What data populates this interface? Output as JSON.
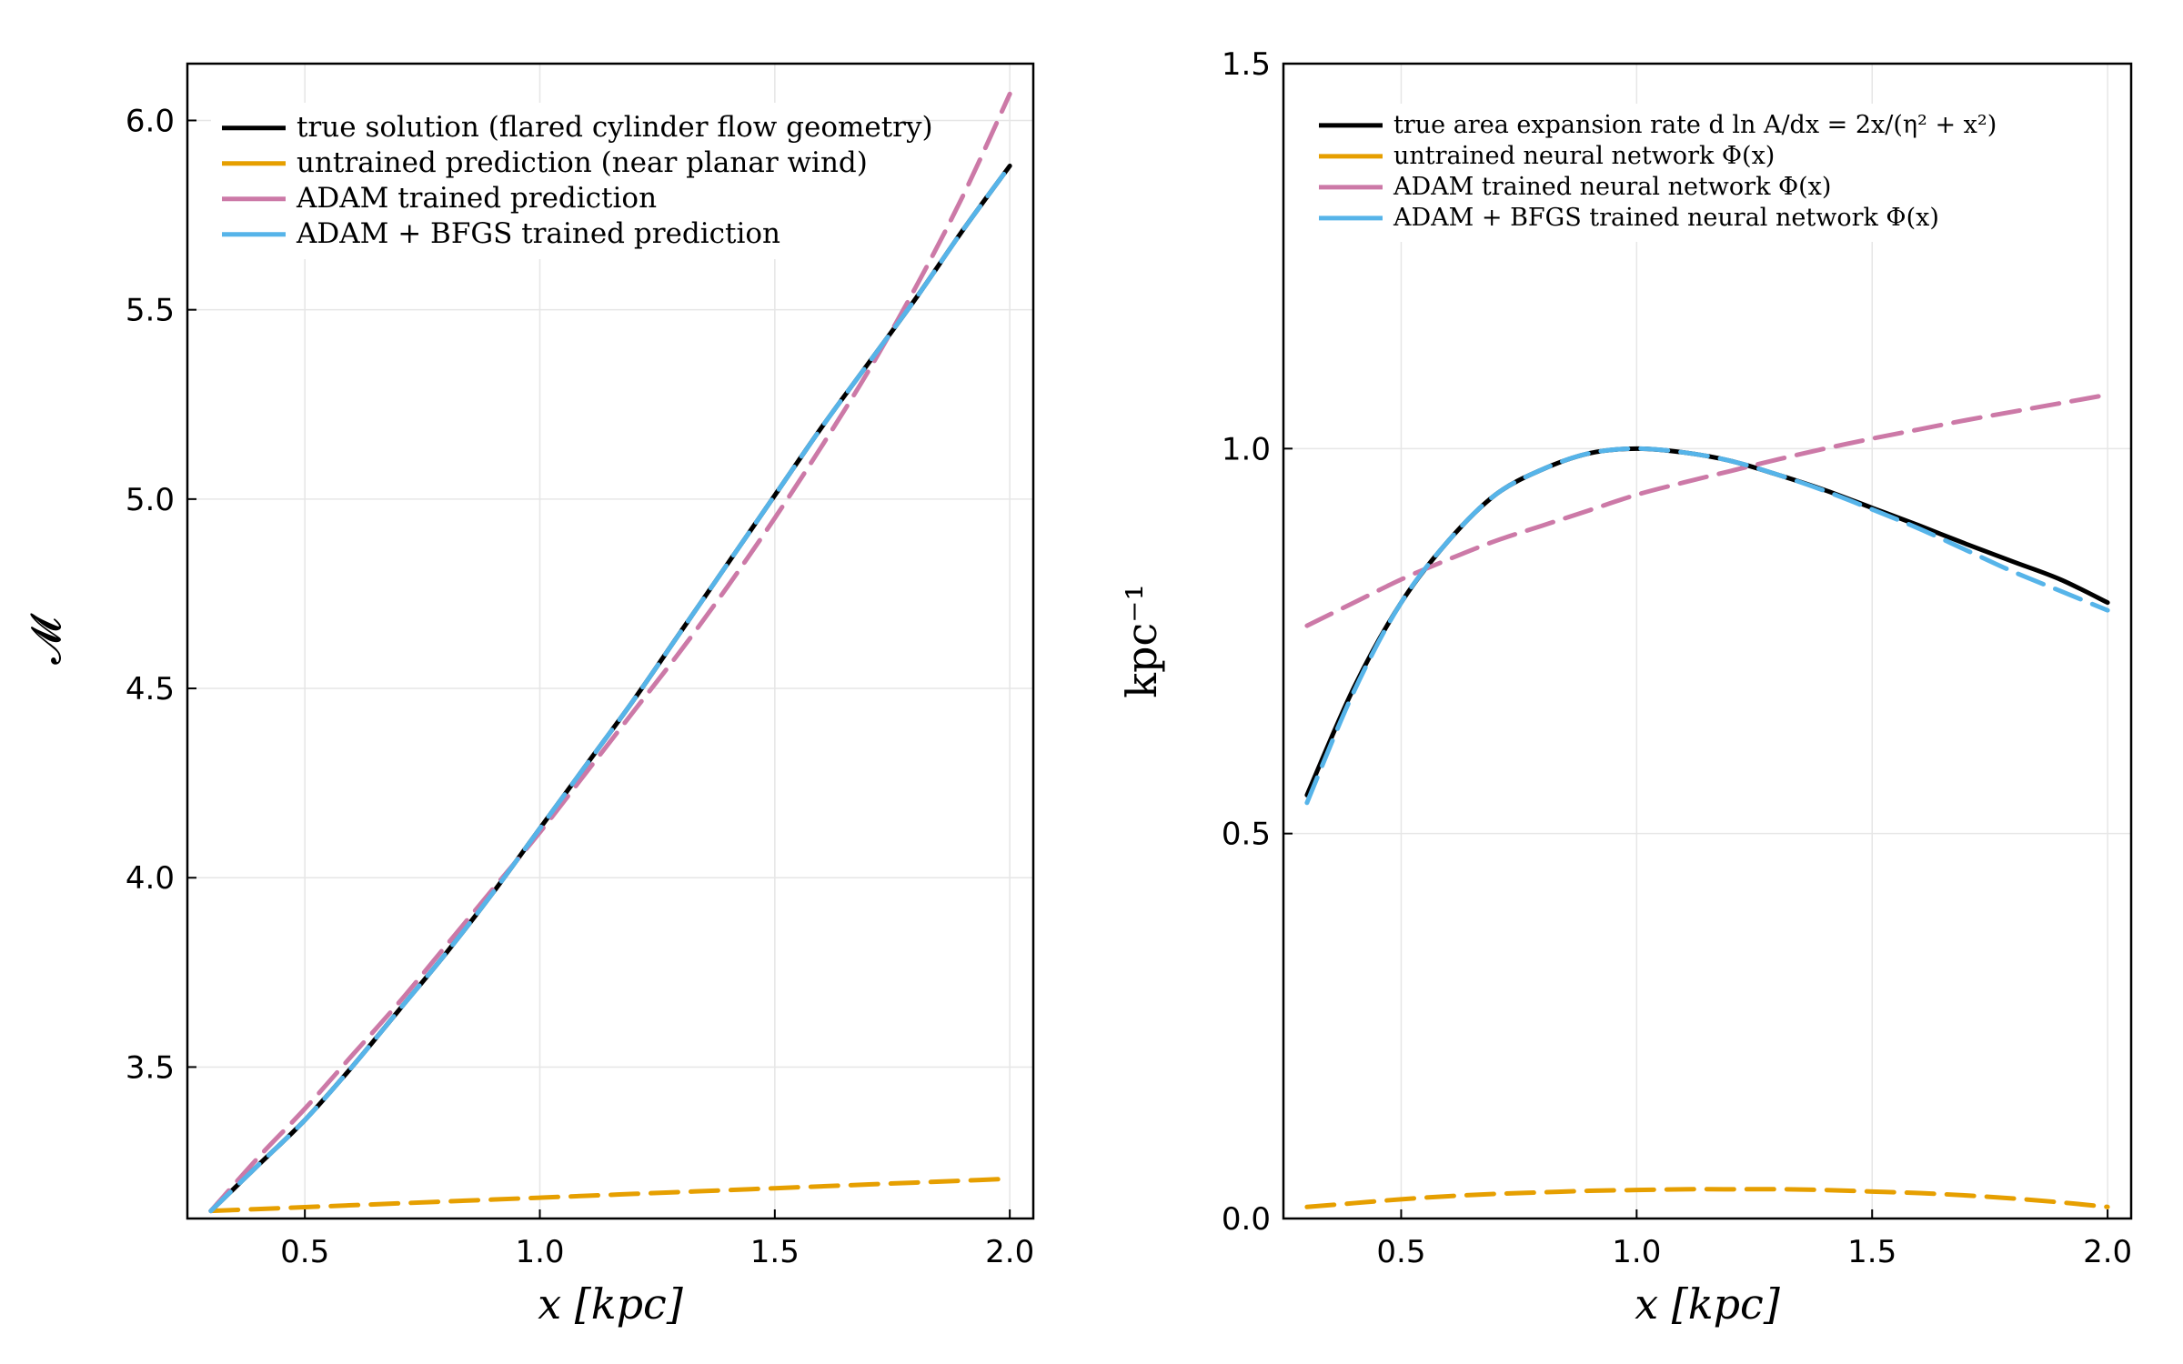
{
  "chart_data": [
    {
      "type": "line",
      "xlabel": "x [kpc]",
      "ylabel": "𝓜",
      "xlim": [
        0.25,
        2.05
      ],
      "ylim": [
        3.1,
        6.15
      ],
      "xticks": [
        0.5,
        1.0,
        1.5,
        2.0
      ],
      "xtick_labels": [
        "0.5",
        "1.0",
        "1.5",
        "2.0"
      ],
      "yticks": [
        3.5,
        4.0,
        4.5,
        5.0,
        5.5,
        6.0
      ],
      "ytick_labels": [
        "3.5",
        "4.0",
        "4.5",
        "5.0",
        "5.5",
        "6.0"
      ],
      "grid": true,
      "legend_position": "top-left",
      "x": [
        0.3,
        0.4,
        0.5,
        0.6,
        0.7,
        0.8,
        0.9,
        1.0,
        1.1,
        1.2,
        1.3,
        1.4,
        1.5,
        1.6,
        1.7,
        1.8,
        1.9,
        2.0
      ],
      "series": [
        {
          "name": "true solution (flared cylinder flow geometry)",
          "color": "#000000",
          "style": "solid",
          "values": [
            3.12,
            3.24,
            3.36,
            3.5,
            3.65,
            3.8,
            3.96,
            4.13,
            4.3,
            4.47,
            4.65,
            4.83,
            5.01,
            5.19,
            5.36,
            5.53,
            5.71,
            5.88
          ]
        },
        {
          "name": "untrained prediction (near planar wind)",
          "color": "#E69F00",
          "style": "dashed",
          "values": [
            3.12,
            3.125,
            3.13,
            3.135,
            3.14,
            3.145,
            3.15,
            3.155,
            3.16,
            3.165,
            3.17,
            3.175,
            3.18,
            3.185,
            3.19,
            3.195,
            3.2,
            3.205
          ]
        },
        {
          "name": "ADAM trained prediction",
          "color": "#CC79A7",
          "style": "dashed",
          "values": [
            3.12,
            3.26,
            3.39,
            3.53,
            3.67,
            3.82,
            3.97,
            4.12,
            4.28,
            4.44,
            4.6,
            4.77,
            4.95,
            5.14,
            5.34,
            5.56,
            5.8,
            6.07
          ]
        },
        {
          "name": "ADAM + BFGS trained prediction",
          "color": "#56B4E9",
          "style": "dashed",
          "values": [
            3.12,
            3.24,
            3.36,
            3.5,
            3.65,
            3.8,
            3.96,
            4.13,
            4.3,
            4.47,
            4.65,
            4.83,
            5.01,
            5.19,
            5.36,
            5.53,
            5.71,
            5.88
          ]
        }
      ]
    },
    {
      "type": "line",
      "xlabel": "x [kpc]",
      "ylabel": "kpc⁻¹",
      "xlim": [
        0.25,
        2.05
      ],
      "ylim": [
        0.0,
        1.5
      ],
      "xticks": [
        0.5,
        1.0,
        1.5,
        2.0
      ],
      "xtick_labels": [
        "0.5",
        "1.0",
        "1.5",
        "2.0"
      ],
      "yticks": [
        0.0,
        0.5,
        1.0,
        1.5
      ],
      "ytick_labels": [
        "0.0",
        "0.5",
        "1.0",
        "1.5"
      ],
      "grid": true,
      "legend_position": "top-left",
      "x": [
        0.3,
        0.4,
        0.5,
        0.6,
        0.7,
        0.8,
        0.9,
        1.0,
        1.1,
        1.2,
        1.3,
        1.4,
        1.5,
        1.6,
        1.7,
        1.8,
        1.9,
        2.0
      ],
      "series": [
        {
          "name": "true area expansion rate d ln A/dx = 2x/(η² + x²)",
          "color": "#000000",
          "style": "solid",
          "values": [
            0.55,
            0.69,
            0.8,
            0.88,
            0.94,
            0.973,
            0.994,
            1.0,
            0.995,
            0.984,
            0.966,
            0.946,
            0.923,
            0.9,
            0.876,
            0.853,
            0.83,
            0.8
          ]
        },
        {
          "name": "untrained neural network Φ(x)",
          "color": "#E69F00",
          "style": "dashed",
          "values": [
            0.015,
            0.02,
            0.025,
            0.029,
            0.032,
            0.034,
            0.036,
            0.037,
            0.038,
            0.038,
            0.038,
            0.037,
            0.035,
            0.033,
            0.03,
            0.026,
            0.021,
            0.015
          ]
        },
        {
          "name": "ADAM trained neural network Φ(x)",
          "color": "#CC79A7",
          "style": "dashed",
          "values": [
            0.77,
            0.8,
            0.83,
            0.856,
            0.88,
            0.9,
            0.92,
            0.94,
            0.956,
            0.971,
            0.986,
            1.0,
            1.013,
            1.025,
            1.037,
            1.048,
            1.059,
            1.07
          ]
        },
        {
          "name": "ADAM + BFGS trained neural network Φ(x)",
          "color": "#56B4E9",
          "style": "dashed",
          "values": [
            0.54,
            0.685,
            0.8,
            0.88,
            0.94,
            0.973,
            0.994,
            1.0,
            0.995,
            0.984,
            0.966,
            0.945,
            0.921,
            0.896,
            0.868,
            0.84,
            0.815,
            0.79
          ]
        }
      ]
    }
  ]
}
